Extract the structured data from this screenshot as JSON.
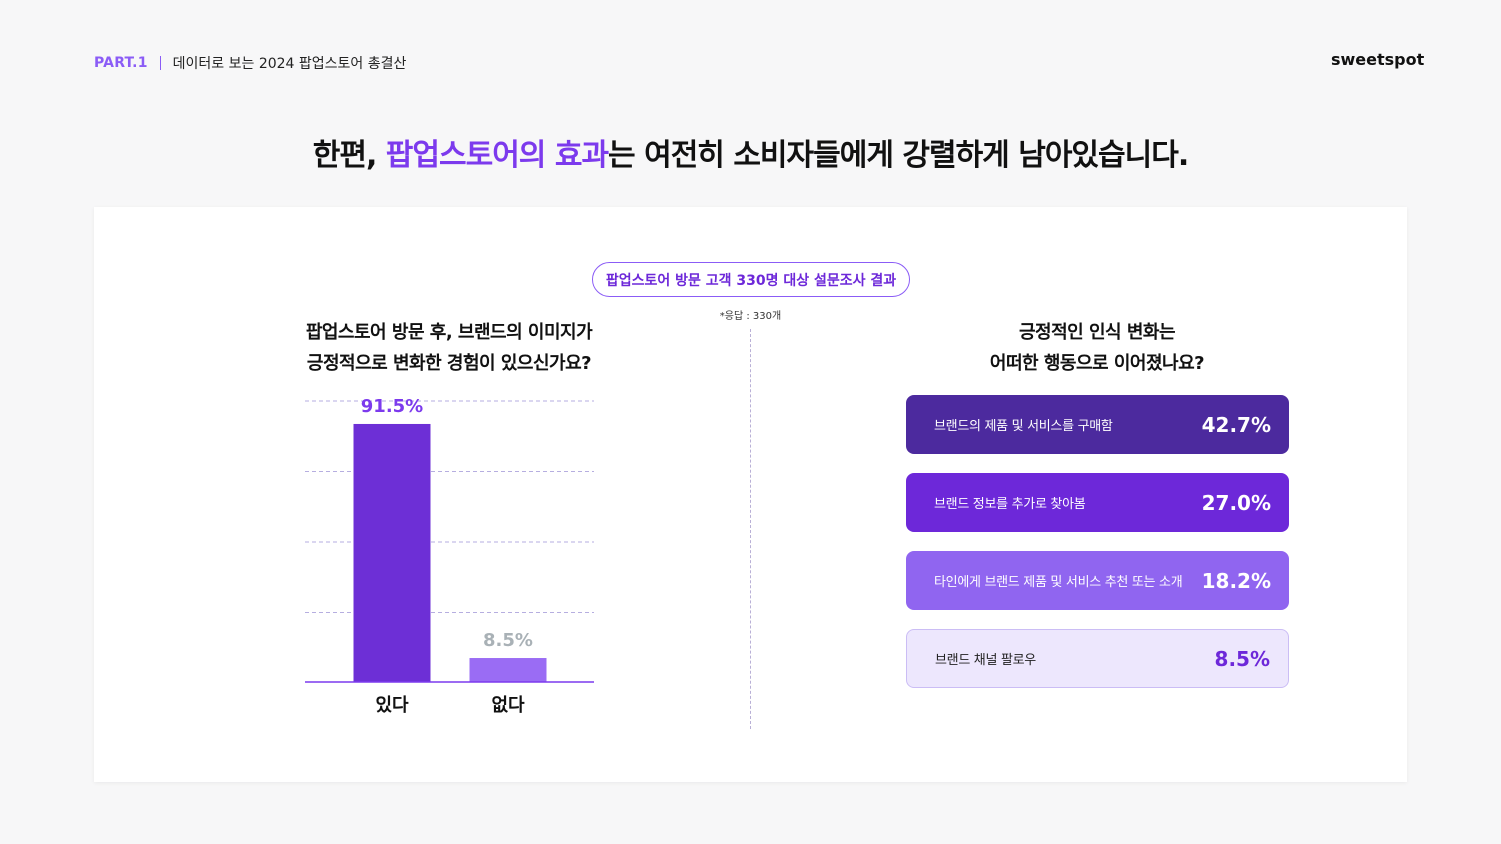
{
  "header": {
    "part": "PART.1",
    "subtitle": "데이터로 보는 2024 팝업스토어 총결산",
    "logo": "sweetspot"
  },
  "headline": {
    "before": "한편, ",
    "highlight1": "팝업스토어의 효과",
    "after": "는 여전히 소비자들에게 강렬하게 남아있습니다."
  },
  "survey": {
    "title": "팝업스토어 방문 고객 330명 대상 설문조사 결과",
    "respondents": "*응답 : 330개"
  },
  "left_question": {
    "line1": "팝업스토어 방문 후, 브랜드의 이미지가",
    "line2": "긍정적으로 변화한 경험이 있으신가요?"
  },
  "right_question": {
    "line1": "긍정적인 인식 변화는",
    "line2": "어떠한 행동으로 이어졌나요?"
  },
  "colors": {
    "accent": "#7c3aed",
    "bar_main": "#6d2fd6",
    "bar_light": "#9a6cf4",
    "label_muted": "#a9b1b6"
  },
  "chart_data": [
    {
      "type": "bar",
      "categories": [
        "있다",
        "없다"
      ],
      "values": [
        91.5,
        8.5
      ],
      "value_labels": [
        "91.5%",
        "8.5%"
      ],
      "ylim": [
        0,
        100
      ],
      "grid": true
    },
    {
      "type": "bar",
      "orientation": "horizontal",
      "categories": [
        "브랜드의 제품 및 서비스를 구매함",
        "브랜드 정보를 추가로 찾아봄",
        "타인에게 브랜드 제품 및 서비스 추천 또는 소개",
        "브랜드 채널 팔로우"
      ],
      "values": [
        42.7,
        27.0,
        18.2,
        8.5
      ],
      "value_labels": [
        "42.7%",
        "27.0%",
        "18.2%",
        "8.5%"
      ]
    }
  ]
}
